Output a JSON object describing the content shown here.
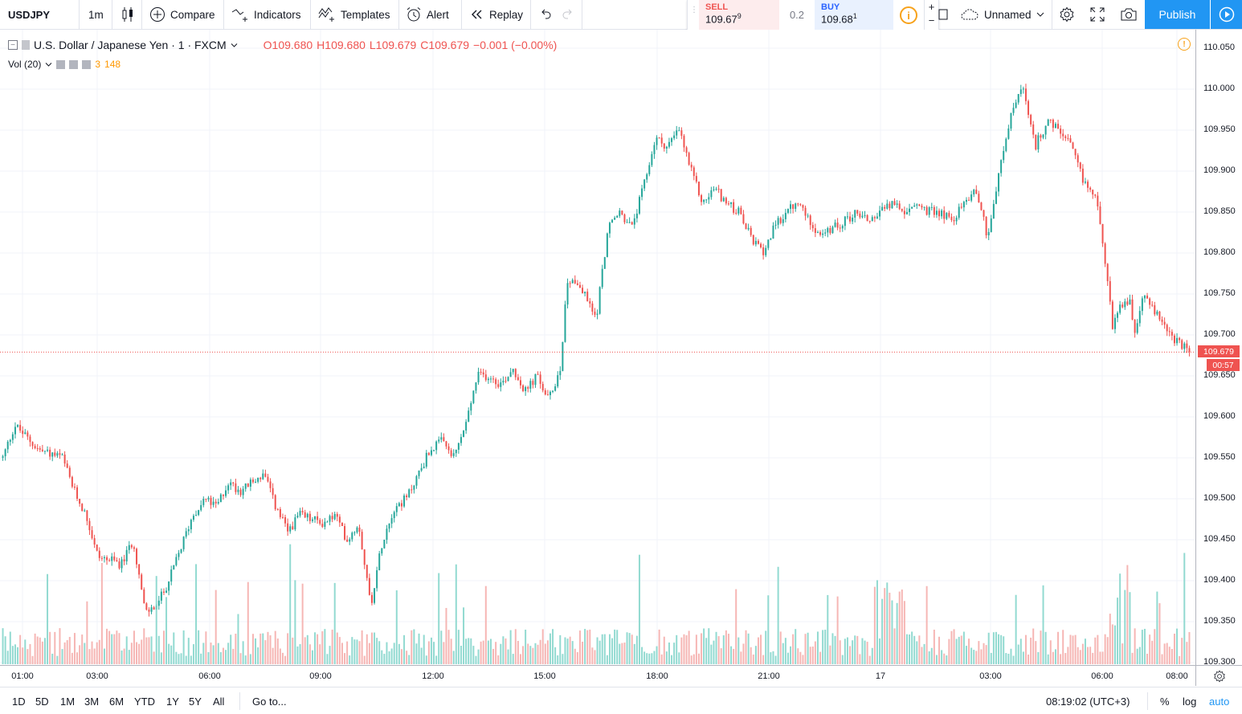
{
  "toolbar": {
    "symbol": "USDJPY",
    "interval": "1m",
    "compare_label": "Compare",
    "indicators_label": "Indicators",
    "templates_label": "Templates",
    "alert_label": "Alert",
    "replay_label": "Replay",
    "layout_name": "Unnamed",
    "publish_label": "Publish",
    "icons": [
      "candles-icon",
      "plus-circle-icon",
      "indicators-icon",
      "templates-icon",
      "alarm-clock-icon",
      "replay-icon",
      "undo-icon",
      "redo-icon",
      "cloud-icon",
      "gear-icon",
      "fullscreen-icon",
      "camera-icon",
      "play-icon"
    ]
  },
  "trade_panel": {
    "sell_label": "SELL",
    "sell_price": "109.67",
    "sell_sup": "9",
    "spread": "0.2",
    "buy_label": "BUY",
    "buy_price": "109.68",
    "buy_sup": "1",
    "plus": "+",
    "minus": "−"
  },
  "legend": {
    "title": "U.S. Dollar / Japanese Yen · 1 · FXCM",
    "open": "O109.680",
    "high": "H109.680",
    "low": "L109.679",
    "close": "C109.679",
    "change": "−0.001 (−0.00%)"
  },
  "volume_legend": {
    "label": "Vol (20)",
    "value1": "3",
    "value2": "148"
  },
  "price_axis": {
    "labels": [
      "110.050",
      "110.000",
      "109.950",
      "109.900",
      "109.850",
      "109.800",
      "109.750",
      "109.700",
      "109.650",
      "109.600",
      "109.550",
      "109.500",
      "109.450",
      "109.400",
      "109.350",
      "109.300"
    ],
    "last_price": "109.679",
    "countdown": "00:57"
  },
  "time_axis": {
    "labels": [
      "01:00",
      "03:00",
      "06:00",
      "09:00",
      "12:00",
      "15:00",
      "18:00",
      "21:00",
      "17",
      "03:00",
      "06:00",
      "08:00"
    ]
  },
  "bottom": {
    "ranges": [
      "1D",
      "5D",
      "1M",
      "3M",
      "6M",
      "YTD",
      "1Y",
      "5Y",
      "All"
    ],
    "goto_label": "Go to...",
    "clock": "08:19:02 (UTC+3)",
    "percent": "%",
    "log": "log",
    "auto": "auto"
  },
  "colors": {
    "up": "#26a69a",
    "down": "#ef5350",
    "accent": "#2196f3",
    "vol_up": "#7fd3c9",
    "vol_down": "#f5a9a7"
  },
  "chart_data": {
    "type": "candlestick",
    "symbol": "USDJPY",
    "interval": "1m",
    "ylim": [
      109.3,
      110.06
    ],
    "x_ticks": [
      "01:00",
      "03:00",
      "06:00",
      "09:00",
      "12:00",
      "15:00",
      "18:00",
      "21:00",
      "17",
      "03:00",
      "06:00",
      "08:00"
    ],
    "price_path": [
      [
        0.0,
        109.55
      ],
      [
        0.01,
        109.59
      ],
      [
        0.03,
        109.56
      ],
      [
        0.05,
        109.55
      ],
      [
        0.06,
        109.51
      ],
      [
        0.07,
        109.48
      ],
      [
        0.08,
        109.43
      ],
      [
        0.1,
        109.42
      ],
      [
        0.11,
        109.45
      ],
      [
        0.12,
        109.36
      ],
      [
        0.13,
        109.37
      ],
      [
        0.14,
        109.4
      ],
      [
        0.15,
        109.44
      ],
      [
        0.16,
        109.48
      ],
      [
        0.17,
        109.5
      ],
      [
        0.18,
        109.49
      ],
      [
        0.19,
        109.52
      ],
      [
        0.2,
        109.51
      ],
      [
        0.22,
        109.53
      ],
      [
        0.23,
        109.49
      ],
      [
        0.24,
        109.46
      ],
      [
        0.25,
        109.48
      ],
      [
        0.27,
        109.47
      ],
      [
        0.28,
        109.48
      ],
      [
        0.29,
        109.45
      ],
      [
        0.3,
        109.47
      ],
      [
        0.31,
        109.37
      ],
      [
        0.32,
        109.45
      ],
      [
        0.33,
        109.49
      ],
      [
        0.34,
        109.5
      ],
      [
        0.35,
        109.53
      ],
      [
        0.36,
        109.56
      ],
      [
        0.37,
        109.57
      ],
      [
        0.38,
        109.55
      ],
      [
        0.39,
        109.59
      ],
      [
        0.4,
        109.65
      ],
      [
        0.41,
        109.65
      ],
      [
        0.42,
        109.64
      ],
      [
        0.43,
        109.66
      ],
      [
        0.44,
        109.63
      ],
      [
        0.45,
        109.65
      ],
      [
        0.46,
        109.62
      ],
      [
        0.47,
        109.66
      ],
      [
        0.475,
        109.76
      ],
      [
        0.48,
        109.77
      ],
      [
        0.49,
        109.75
      ],
      [
        0.5,
        109.72
      ],
      [
        0.51,
        109.83
      ],
      [
        0.52,
        109.85
      ],
      [
        0.53,
        109.83
      ],
      [
        0.54,
        109.88
      ],
      [
        0.55,
        109.94
      ],
      [
        0.56,
        109.93
      ],
      [
        0.57,
        109.95
      ],
      [
        0.58,
        109.9
      ],
      [
        0.59,
        109.86
      ],
      [
        0.6,
        109.88
      ],
      [
        0.61,
        109.86
      ],
      [
        0.62,
        109.85
      ],
      [
        0.63,
        109.82
      ],
      [
        0.64,
        109.8
      ],
      [
        0.65,
        109.83
      ],
      [
        0.66,
        109.85
      ],
      [
        0.67,
        109.86
      ],
      [
        0.68,
        109.84
      ],
      [
        0.69,
        109.82
      ],
      [
        0.7,
        109.83
      ],
      [
        0.71,
        109.84
      ],
      [
        0.72,
        109.85
      ],
      [
        0.73,
        109.84
      ],
      [
        0.74,
        109.85
      ],
      [
        0.75,
        109.86
      ],
      [
        0.76,
        109.85
      ],
      [
        0.77,
        109.86
      ],
      [
        0.78,
        109.85
      ],
      [
        0.79,
        109.85
      ],
      [
        0.8,
        109.84
      ],
      [
        0.81,
        109.86
      ],
      [
        0.82,
        109.88
      ],
      [
        0.83,
        109.82
      ],
      [
        0.84,
        109.9
      ],
      [
        0.85,
        109.97
      ],
      [
        0.855,
        109.99
      ],
      [
        0.86,
        110.0
      ],
      [
        0.865,
        109.96
      ],
      [
        0.87,
        109.93
      ],
      [
        0.88,
        109.96
      ],
      [
        0.89,
        109.95
      ],
      [
        0.9,
        109.93
      ],
      [
        0.91,
        109.89
      ],
      [
        0.92,
        109.87
      ],
      [
        0.925,
        109.84
      ],
      [
        0.93,
        109.78
      ],
      [
        0.935,
        109.71
      ],
      [
        0.94,
        109.73
      ],
      [
        0.95,
        109.74
      ],
      [
        0.955,
        109.7
      ],
      [
        0.96,
        109.75
      ],
      [
        0.965,
        109.74
      ],
      [
        0.97,
        109.73
      ],
      [
        0.98,
        109.71
      ],
      [
        0.99,
        109.69
      ],
      [
        1.0,
        109.679
      ]
    ]
  }
}
